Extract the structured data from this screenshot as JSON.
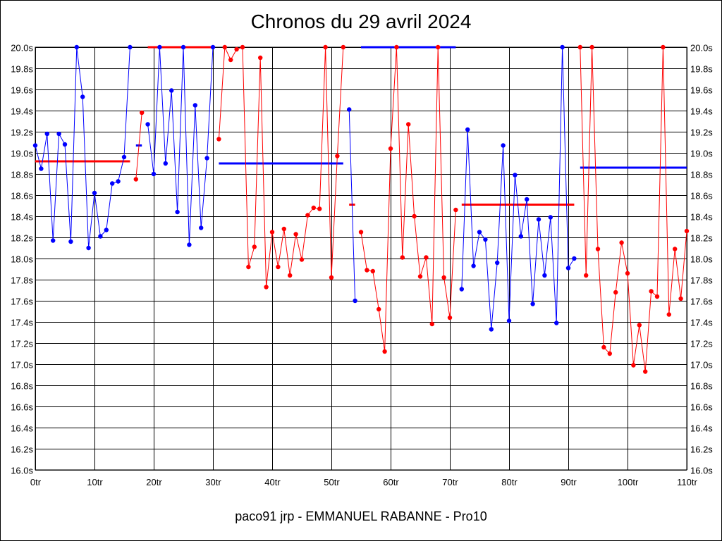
{
  "chart_data": {
    "type": "line",
    "title": "Chronos du 29 avril 2024",
    "footer": "paco91 jrp - EMMANUEL RABANNE - Pro10",
    "xlabel": "",
    "ylabel": "",
    "xlim": [
      0,
      110
    ],
    "ylim": [
      16.0,
      20.0
    ],
    "grid": true,
    "x_ticks": [
      "0tr",
      "10tr",
      "20tr",
      "30tr",
      "40tr",
      "50tr",
      "60tr",
      "70tr",
      "80tr",
      "90tr",
      "100tr",
      "110tr"
    ],
    "y_ticks": [
      "16.0s",
      "16.2s",
      "16.4s",
      "16.6s",
      "16.8s",
      "17.0s",
      "17.2s",
      "17.4s",
      "17.6s",
      "17.8s",
      "18.0s",
      "18.2s",
      "18.4s",
      "18.6s",
      "18.8s",
      "19.0s",
      "19.2s",
      "19.4s",
      "19.6s",
      "19.8s",
      "20.0s"
    ],
    "segments": [
      {
        "color": "#0000ff",
        "x": [
          0,
          1,
          2,
          3,
          4,
          5,
          6,
          7,
          8,
          9,
          10,
          11,
          12,
          13,
          14,
          15,
          16
        ],
        "y": [
          19.07,
          18.85,
          19.18,
          18.17,
          19.18,
          19.08,
          18.16,
          20.0,
          19.53,
          18.1,
          18.62,
          18.21,
          18.27,
          18.71,
          18.73,
          18.96,
          20.0
        ]
      },
      {
        "color": "#ff0000",
        "x": [
          17,
          18
        ],
        "y": [
          18.75,
          19.38
        ]
      },
      {
        "color": "#0000ff",
        "x": [
          19,
          20,
          21,
          22,
          23,
          24,
          25,
          26,
          27,
          28,
          29,
          30
        ],
        "y": [
          19.27,
          18.8,
          20.0,
          18.9,
          19.59,
          18.44,
          20.0,
          18.13,
          19.45,
          18.29,
          18.95,
          20.0
        ]
      },
      {
        "color": "#ff0000",
        "x": [
          31,
          32,
          33,
          34,
          35,
          36,
          37,
          38,
          39,
          40,
          41,
          42,
          43,
          44,
          45,
          46,
          47,
          48,
          49,
          50,
          51,
          52
        ],
        "y": [
          19.13,
          20.0,
          19.88,
          19.98,
          20.0,
          17.92,
          18.11,
          19.9,
          17.73,
          18.25,
          17.92,
          18.28,
          17.84,
          18.23,
          17.99,
          18.41,
          18.48,
          18.47,
          20.0,
          17.82,
          18.97,
          20.0
        ]
      },
      {
        "color": "#0000ff",
        "x": [
          53,
          54
        ],
        "y": [
          19.41,
          17.6
        ]
      },
      {
        "color": "#ff0000",
        "x": [
          55,
          56,
          57,
          58,
          59,
          60,
          61,
          62,
          63,
          64,
          65,
          66,
          67,
          68,
          69,
          70,
          71
        ],
        "y": [
          18.25,
          17.89,
          17.88,
          17.52,
          17.12,
          19.04,
          20.0,
          18.01,
          19.27,
          18.4,
          17.83,
          18.01,
          17.38,
          20.0,
          17.82,
          17.44,
          18.46
        ]
      },
      {
        "color": "#0000ff",
        "x": [
          72,
          73,
          74,
          75,
          76,
          77,
          78,
          79,
          80,
          81,
          82,
          83,
          84,
          85,
          86,
          87,
          88,
          89,
          90,
          91
        ],
        "y": [
          17.71,
          19.22,
          17.93,
          18.25,
          18.18,
          17.33,
          17.96,
          19.07,
          17.41,
          18.79,
          18.21,
          18.56,
          17.57,
          18.37,
          17.84,
          18.39,
          17.39,
          20.0,
          17.91,
          18.0
        ]
      },
      {
        "color": "#ff0000",
        "x": [
          92,
          93,
          94,
          95,
          96,
          97,
          98,
          99,
          100,
          101,
          102,
          103,
          104,
          105,
          106,
          107,
          108,
          109,
          110
        ],
        "y": [
          20.0,
          17.84,
          20.0,
          18.09,
          17.16,
          17.1,
          17.68,
          18.15,
          17.86,
          16.99,
          17.37,
          16.93,
          17.69,
          17.64,
          20.0,
          17.47,
          18.09,
          17.62,
          18.26
        ]
      }
    ],
    "averages": [
      {
        "color": "#ff0000",
        "x": [
          0,
          16
        ],
        "y": 18.92
      },
      {
        "color": "#0000ff",
        "x": [
          17,
          18
        ],
        "y": 19.07
      },
      {
        "color": "#ff0000",
        "x": [
          19,
          30
        ],
        "y": 20.0
      },
      {
        "color": "#0000ff",
        "x": [
          31,
          52
        ],
        "y": 18.9
      },
      {
        "color": "#ff0000",
        "x": [
          53,
          54
        ],
        "y": 18.51
      },
      {
        "color": "#0000ff",
        "x": [
          55,
          71
        ],
        "y": 20.0
      },
      {
        "color": "#ff0000",
        "x": [
          72,
          91
        ],
        "y": 18.51
      },
      {
        "color": "#0000ff",
        "x": [
          92,
          110
        ],
        "y": 18.86
      }
    ]
  }
}
